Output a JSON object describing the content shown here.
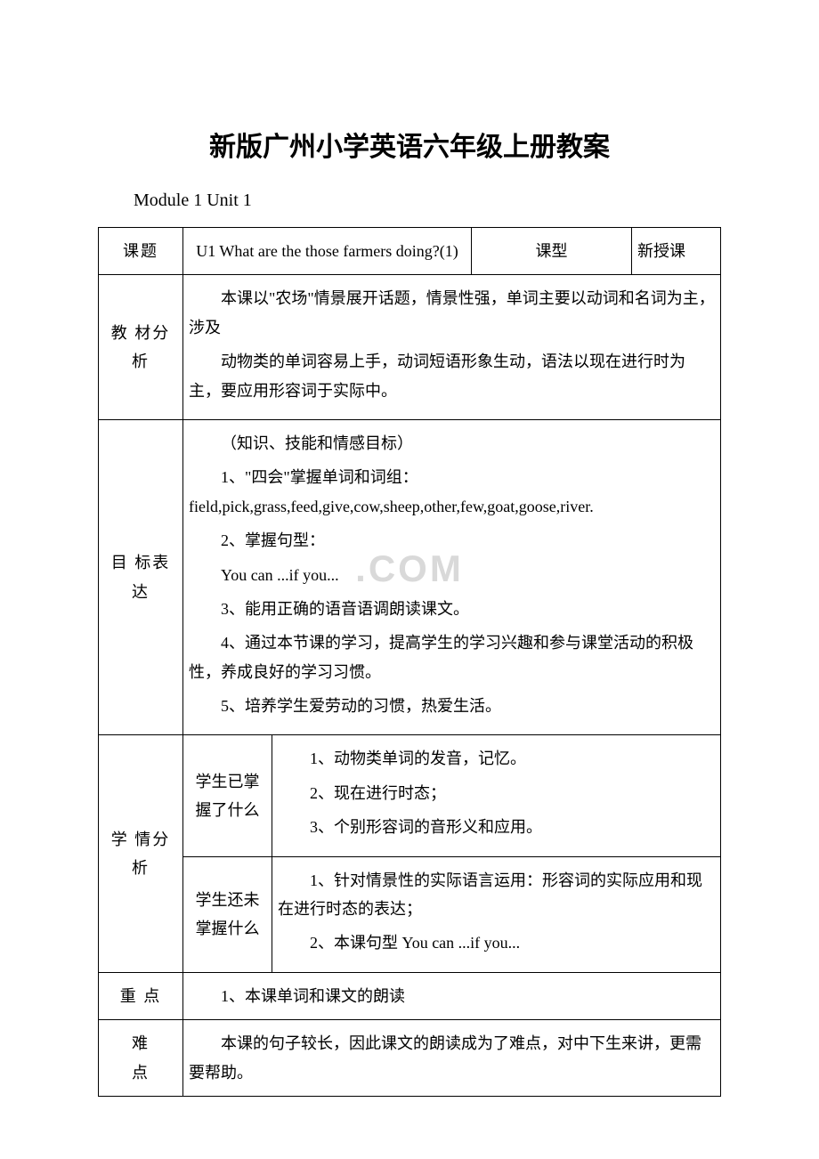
{
  "title": "新版广州小学英语六年级上册教案",
  "subtitle": "Module 1 Unit 1",
  "watermark": ".COM",
  "table": {
    "row1": {
      "label": "课题",
      "unit": "U1 What are the those farmers doing?(1)",
      "type_label": "课型",
      "type_value": "新授课"
    },
    "row2": {
      "label": "教 材分 析",
      "p1": "本课以\"农场\"情景展开话题，情景性强，单词主要以动词和名词为主，涉及",
      "p2": "动物类的单词容易上手，动词短语形象生动，语法以现在进行时为主，要应用形容词于实际中。"
    },
    "row3": {
      "label": "目 标表 达",
      "p1": "（知识、技能和情感目标）",
      "p2": "1、\"四会\"掌握单词和词组：field,pick,grass,feed,give,cow,sheep,other,few,goat,goose,river.",
      "p3": "2、掌握句型：",
      "p4": "You can ...if you...",
      "p5": "3、能用正确的语音语调朗读课文。",
      "p6": "4、通过本节课的学习，提高学生的学习兴趣和参与课堂活动的积极性，养成良好的学习习惯。",
      "p7": "5、培养学生爱劳动的习惯，热爱生活。"
    },
    "row4": {
      "label": "学 情分 析",
      "sub1_label_l1": "学生已掌",
      "sub1_label_l2": "握了什么",
      "sub1_p1": "1、动物类单词的发音，记忆。",
      "sub1_p2": "2、现在进行时态；",
      "sub1_p3": "3、个别形容词的音形义和应用。",
      "sub2_label_l1": "学生还未",
      "sub2_label_l2": "掌握什么",
      "sub2_p1": "1、针对情景性的实际语言运用：形容词的实际应用和现在进行时态的表达；",
      "sub2_p2": "2、本课句型 You can ...if you..."
    },
    "row5": {
      "label": "重 点",
      "content": "1、本课单词和课文的朗读"
    },
    "row6": {
      "label_l1": "难",
      "label_l2": "点",
      "content": "本课的句子较长，因此课文的朗读成为了难点，对中下生来讲，更需要帮助。"
    }
  }
}
